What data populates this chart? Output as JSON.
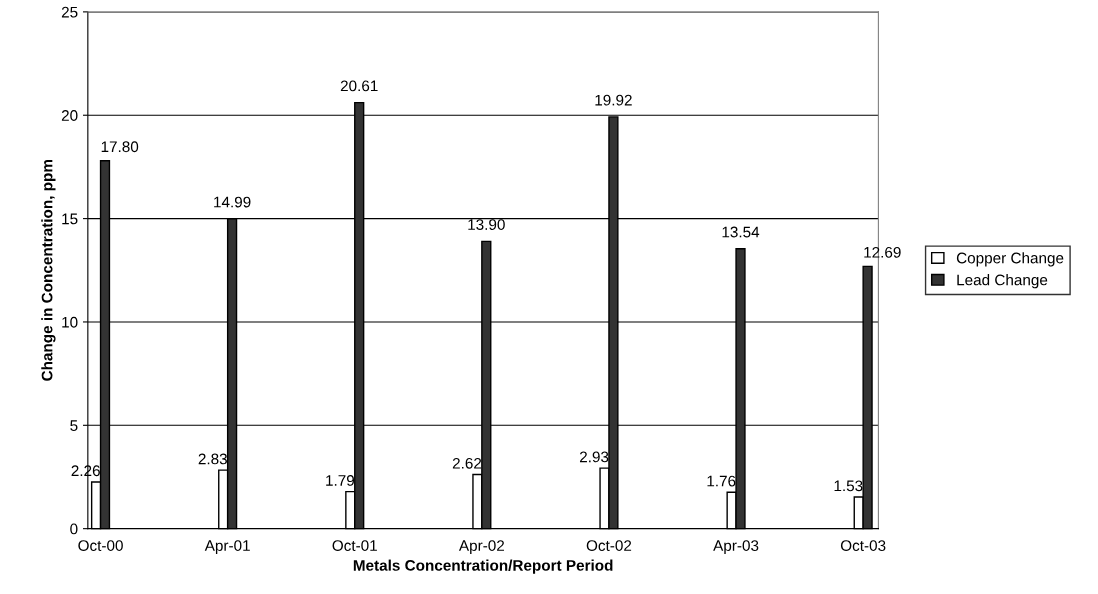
{
  "chart_data": {
    "type": "bar",
    "xlabel": "Metals Concentration/Report Period",
    "ylabel": "Change in Concentration, ppm",
    "categories": [
      "Oct-00",
      "Apr-01",
      "Oct-01",
      "Apr-02",
      "Oct-02",
      "Apr-03",
      "Oct-03"
    ],
    "series": [
      {
        "name": "Copper Change",
        "color": "#ffffff",
        "values": [
          2.26,
          2.83,
          1.79,
          2.62,
          2.93,
          1.76,
          1.53
        ],
        "value_labels": [
          "2.26",
          "2.83",
          "1.79",
          "2.62",
          "2.93",
          "1.76",
          "1.53"
        ]
      },
      {
        "name": "Lead Change",
        "color": "#333333",
        "values": [
          17.8,
          14.99,
          20.61,
          13.9,
          19.92,
          13.54,
          12.69
        ],
        "value_labels": [
          "17.80",
          "14.99",
          "20.61",
          "13.90",
          "19.92",
          "13.54",
          "12.69"
        ]
      }
    ],
    "ylim": [
      0,
      25
    ],
    "yticks": [
      0,
      5,
      10,
      15,
      20,
      25
    ],
    "grid": "y",
    "legend": "right"
  }
}
